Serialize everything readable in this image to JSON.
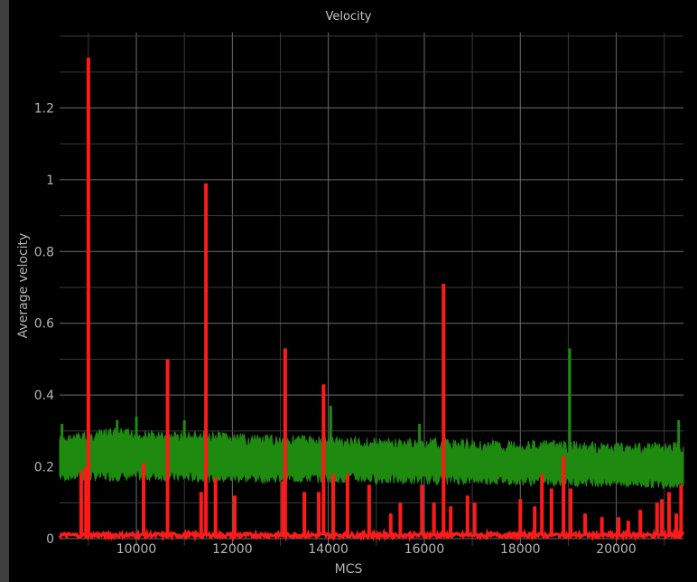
{
  "chart_data": {
    "type": "line",
    "title": "Velocity",
    "xlabel": "MCS",
    "ylabel": "Average velocity",
    "xlim": [
      8400,
      21400
    ],
    "ylim": [
      -0.02,
      1.41
    ],
    "grid": true,
    "xticks": [
      10000,
      12000,
      14000,
      16000,
      18000,
      20000
    ],
    "yticks": [
      0,
      0.2,
      0.4,
      0.6,
      0.8,
      1,
      1.2
    ],
    "ytick_labels": [
      "0",
      "0.2",
      "0.4",
      "0.6",
      "0.8",
      "1",
      "1.2"
    ],
    "series": [
      {
        "color": "#1f8a10",
        "band": {
          "x": [
            8400,
            9500,
            10500,
            11500,
            12500,
            13500,
            14500,
            15500,
            16500,
            17500,
            18500,
            19500,
            20500,
            21400
          ],
          "low": [
            0.16,
            0.16,
            0.16,
            0.155,
            0.155,
            0.155,
            0.155,
            0.15,
            0.15,
            0.15,
            0.145,
            0.145,
            0.14,
            0.14
          ],
          "high": [
            0.29,
            0.31,
            0.3,
            0.3,
            0.29,
            0.29,
            0.285,
            0.28,
            0.28,
            0.275,
            0.275,
            0.27,
            0.27,
            0.27
          ]
        },
        "spikes": [
          {
            "x": 8450,
            "y": 0.32
          },
          {
            "x": 9000,
            "y": 0.32
          },
          {
            "x": 9600,
            "y": 0.33
          },
          {
            "x": 10000,
            "y": 0.34
          },
          {
            "x": 11000,
            "y": 0.33
          },
          {
            "x": 14050,
            "y": 0.37
          },
          {
            "x": 15900,
            "y": 0.32
          },
          {
            "x": 19030,
            "y": 0.53
          },
          {
            "x": 21300,
            "y": 0.33
          }
        ]
      },
      {
        "color": "#ff1a1a",
        "baseline": 0.01,
        "spikes": [
          {
            "x": 8850,
            "y": 0.19
          },
          {
            "x": 8950,
            "y": 0.2
          },
          {
            "x": 9000,
            "y": 1.34
          },
          {
            "x": 10150,
            "y": 0.21
          },
          {
            "x": 10650,
            "y": 0.5
          },
          {
            "x": 11350,
            "y": 0.13
          },
          {
            "x": 11450,
            "y": 0.99
          },
          {
            "x": 11650,
            "y": 0.17
          },
          {
            "x": 12050,
            "y": 0.12
          },
          {
            "x": 13050,
            "y": 0.16
          },
          {
            "x": 13100,
            "y": 0.53
          },
          {
            "x": 13500,
            "y": 0.13
          },
          {
            "x": 13800,
            "y": 0.13
          },
          {
            "x": 13900,
            "y": 0.43
          },
          {
            "x": 14100,
            "y": 0.18
          },
          {
            "x": 14400,
            "y": 0.18
          },
          {
            "x": 14850,
            "y": 0.15
          },
          {
            "x": 15300,
            "y": 0.07
          },
          {
            "x": 15500,
            "y": 0.1
          },
          {
            "x": 15950,
            "y": 0.15
          },
          {
            "x": 16200,
            "y": 0.1
          },
          {
            "x": 16400,
            "y": 0.71
          },
          {
            "x": 16550,
            "y": 0.09
          },
          {
            "x": 16900,
            "y": 0.12
          },
          {
            "x": 17050,
            "y": 0.1
          },
          {
            "x": 18000,
            "y": 0.11
          },
          {
            "x": 18300,
            "y": 0.09
          },
          {
            "x": 18450,
            "y": 0.18
          },
          {
            "x": 18650,
            "y": 0.14
          },
          {
            "x": 18900,
            "y": 0.23
          },
          {
            "x": 19050,
            "y": 0.14
          },
          {
            "x": 19350,
            "y": 0.07
          },
          {
            "x": 19700,
            "y": 0.06
          },
          {
            "x": 20050,
            "y": 0.06
          },
          {
            "x": 20250,
            "y": 0.05
          },
          {
            "x": 20500,
            "y": 0.08
          },
          {
            "x": 20850,
            "y": 0.1
          },
          {
            "x": 20950,
            "y": 0.11
          },
          {
            "x": 21100,
            "y": 0.13
          },
          {
            "x": 21250,
            "y": 0.07
          },
          {
            "x": 21350,
            "y": 0.15
          }
        ]
      }
    ]
  }
}
